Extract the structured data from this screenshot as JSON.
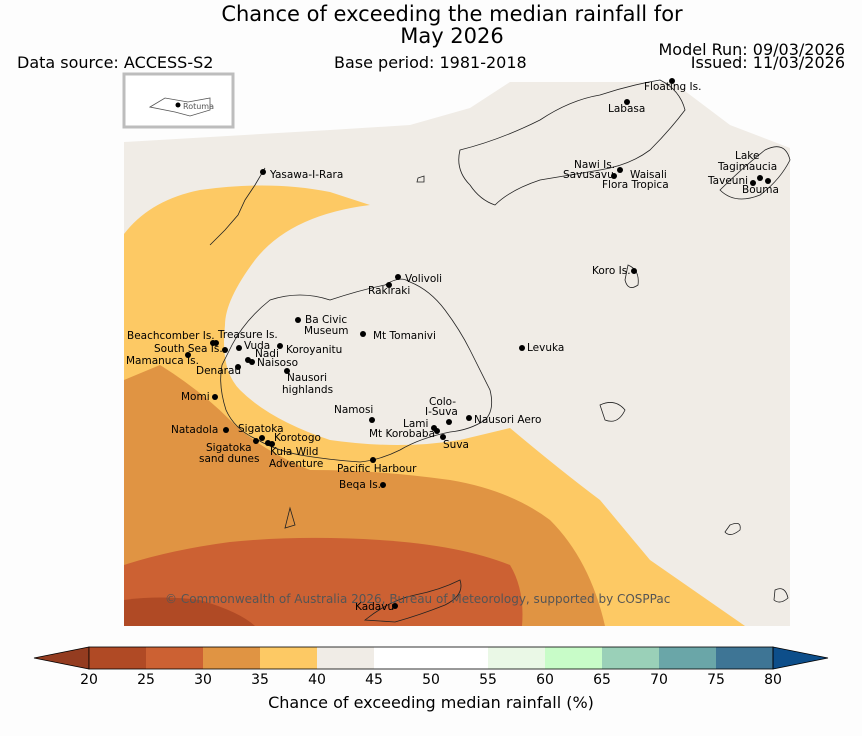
{
  "title": {
    "line1": "Chance of exceeding the median rainfall for",
    "line2": "May 2026"
  },
  "header": {
    "data_source": "Data source: ACCESS-S2",
    "base_period": "Base period: 1981-2018",
    "model_run": "Model Run: 09/03/2026",
    "issued": "Issued: 11/03/2026"
  },
  "inset": {
    "label": "Rotuma"
  },
  "copyright": "© Commonwealth of Australia 2026, Bureau of Meteorology, supported by COSPPac",
  "colorbar": {
    "label": "Chance of exceeding median rainfall (%)",
    "ticks": [
      "20",
      "25",
      "30",
      "35",
      "40",
      "45",
      "50",
      "55",
      "60",
      "65",
      "70",
      "75",
      "80"
    ],
    "colors": [
      "#b04a25",
      "#cc6133",
      "#e09443",
      "#fdc964",
      "#f0ece6",
      "#ffffff",
      "#ffffff",
      "#eaf8e6",
      "#c8fcc8",
      "#9ad0b8",
      "#6aa6a8",
      "#3e7595"
    ],
    "under_color": "#943c20",
    "over_color": "#0d4e8a"
  },
  "places": {
    "floating": "Floating Is.",
    "labasa": "Labasa",
    "nawi": "Nawi Is.",
    "savusavu": "Savusavu",
    "waisali": "Waisali",
    "flora": "Flora Tropica",
    "lake": "Lake",
    "tagimaucia": "Tagimaucia",
    "taveuni": "Taveuni",
    "bouma": "Bouma",
    "yasawa": "Yasawa-I-Rara",
    "koro": "Koro Is.",
    "volivoli": "Volivoli",
    "rakiraki": "Rakiraki",
    "bacivic": "Ba Civic",
    "museum": "Museum",
    "tomanivi": "Mt Tomanivi",
    "beachcomber": "Beachcomber Is.",
    "treasure": "Treasure Is.",
    "southsea": "South Sea Is.",
    "vuda": "Vuda",
    "nadi": "Nadi",
    "koroyanitu": "Koroyanitu",
    "mamanuca": "Mamanuca Is.",
    "naisoso": "Naisoso",
    "denarau": "Denarau",
    "nausori_h1": "Nausori",
    "nausori_h2": "highlands",
    "levuka": "Levuka",
    "momi": "Momi",
    "namosi": "Namosi",
    "colo": "Colo-",
    "isuva": "I-Suva",
    "lami": "Lami",
    "nausori_aero": "Nausori Aero",
    "korobaba": "Mt Korobaba",
    "suva": "Suva",
    "natadola": "Natadola",
    "sigatoka": "Sigatoka",
    "korotogo": "Korotogo",
    "sig_dunes1": "Sigatoka",
    "sig_dunes2": "sand dunes",
    "kula1": "Kula Wild",
    "kula2": "Adventure",
    "pacific": "Pacific Harbour",
    "beqa": "Beqa Is.",
    "kadavu": "Kadavu"
  }
}
